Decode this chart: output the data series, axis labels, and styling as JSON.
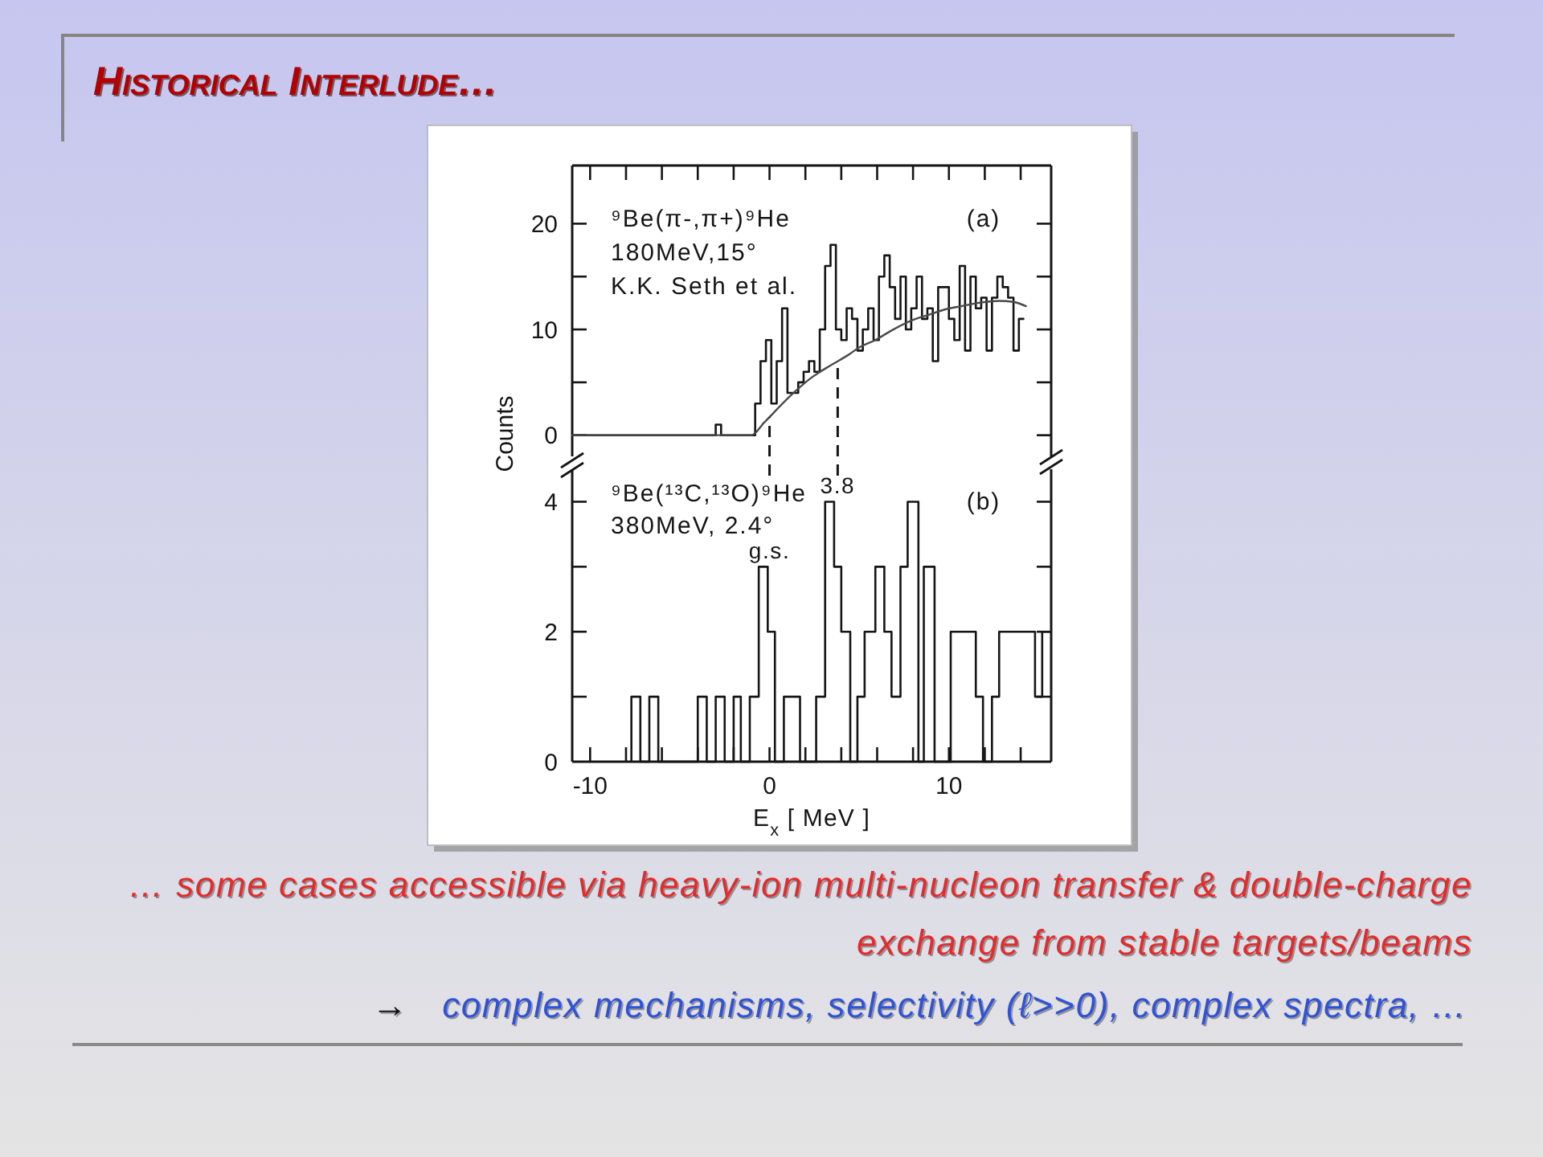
{
  "chart_data": [
    {
      "type": "histogram",
      "title": "Historical Interlude…",
      "ylabel": "Counts",
      "annotations": [
        "⁹Be(π-,π+)⁹He",
        "180MeV,15°",
        "K.K. Seth et al.",
        "(a)"
      ],
      "series": [
        {
          "color": "#151515",
          "bins": [
            -11,
            -3.0,
            -2.7,
            -0.8,
            -0.5,
            -0.2,
            0.1,
            0.4,
            0.7,
            1.0,
            1.3,
            1.6,
            1.9,
            2.2,
            2.5,
            2.8,
            3.1,
            3.4,
            3.7,
            4.0,
            4.3,
            4.6,
            4.9,
            5.2,
            5.5,
            5.8,
            6.1,
            6.4,
            6.7,
            7.0,
            7.3,
            7.6,
            7.9,
            8.2,
            8.5,
            8.8,
            9.1,
            9.4,
            9.7,
            10.0,
            10.3,
            10.6,
            10.9,
            11.2,
            11.5,
            11.8,
            12.1,
            12.4,
            12.7,
            13.0,
            13.3,
            13.6,
            13.9,
            14.2
          ],
          "values": [
            0,
            1,
            0,
            3,
            7,
            9,
            3,
            7,
            12,
            4,
            4,
            5,
            6,
            7,
            6,
            10,
            16,
            18,
            10,
            9,
            12,
            11,
            8,
            10,
            12,
            9,
            15,
            17,
            14,
            11,
            15,
            10,
            12,
            15,
            11,
            12,
            7,
            14,
            14,
            11,
            9,
            16,
            8,
            15,
            12,
            13,
            8,
            13,
            15,
            14,
            13,
            8,
            11
          ]
        },
        {
          "type": "line",
          "color": "#4a4a4a",
          "x": [
            -11,
            -1.0,
            -0.3,
            1.4,
            2.3,
            3.4,
            4.4,
            5.0,
            5.9,
            6.8,
            8.0,
            8.9,
            9.8,
            10.7,
            11.6,
            12.8,
            13.6,
            14.3
          ],
          "values": [
            0,
            0,
            1.2,
            4.1,
            5.4,
            6.6,
            7.6,
            8.3,
            9.0,
            9.9,
            10.9,
            11.4,
            11.9,
            12.2,
            12.5,
            12.7,
            12.6,
            12.2
          ]
        }
      ],
      "xlim": [
        -11,
        15.7
      ],
      "ylim": [
        -2,
        25.5
      ],
      "xticks": [
        -10,
        {
          "value": -8,
          "label": null
        },
        {
          "value": -6,
          "label": null
        },
        {
          "value": -4,
          "label": null
        },
        {
          "value": -2,
          "label": null
        },
        0,
        {
          "value": 2,
          "label": null
        },
        {
          "value": 4,
          "label": null
        },
        {
          "value": 6,
          "label": null
        },
        {
          "value": 8,
          "label": null
        },
        10,
        {
          "value": 12,
          "label": null
        },
        {
          "value": 14,
          "label": null
        }
      ],
      "yticks": [
        0,
        {
          "value": 5,
          "label": null
        },
        10,
        {
          "value": 15,
          "label": null
        },
        20
      ],
      "tick_labels": "y",
      "ref_lines": [
        {
          "axis": "x",
          "value": 0,
          "line_style": "dashed"
        },
        {
          "axis": "x",
          "value": 3.8,
          "line_style": "dashed"
        }
      ]
    },
    {
      "type": "histogram",
      "xlabel": "E$_{x}$ [ MeV ]",
      "annotations": [
        "⁹Be(¹³C,¹³O)⁹He",
        "380MeV, 2.4°",
        "(b)",
        {
          "text": "g.s.",
          "x": 0,
          "y": 3
        },
        {
          "text": "3.8",
          "x": 3.8,
          "y": 4
        }
      ],
      "bins": [
        -7.7,
        -7.2,
        -6.7,
        -6.2,
        -4.0,
        -3.5,
        -3.0,
        -2.5,
        -2.0,
        -1.6,
        -1.1,
        -0.6,
        -0.1,
        0.3,
        0.8,
        1.7,
        2.6,
        3.1,
        3.6,
        4.0,
        4.5,
        4.9,
        5.3,
        5.9,
        6.4,
        6.8,
        7.3,
        7.7,
        8.3,
        8.6,
        9.2,
        10.1,
        11.5,
        11.9,
        12.4,
        12.8,
        14.8,
        15.2,
        15.7
      ],
      "values": [
        1,
        0,
        1,
        0,
        1,
        0,
        1,
        0,
        1,
        0,
        1,
        3,
        2,
        0,
        1,
        0,
        1,
        4,
        3,
        2,
        0,
        1,
        2,
        3,
        2,
        1,
        3,
        4,
        0,
        3,
        0,
        2,
        1,
        0,
        1,
        2,
        1,
        2
      ],
      "color": "#151515",
      "xlim": [
        -11,
        15.7
      ],
      "ylim": [
        0,
        4.5
      ],
      "xticks": [
        -10,
        {
          "value": -8,
          "label": null
        },
        {
          "value": -6,
          "label": null
        },
        {
          "value": -4,
          "label": null
        },
        {
          "value": -2,
          "label": null
        },
        0,
        {
          "value": 2,
          "label": null
        },
        {
          "value": 4,
          "label": null
        },
        {
          "value": 6,
          "label": null
        },
        {
          "value": 8,
          "label": null
        },
        10,
        {
          "value": 12,
          "label": null
        },
        {
          "value": 14,
          "label": null
        }
      ],
      "yticks": [
        0,
        {
          "value": 1,
          "label": null
        },
        2,
        {
          "value": 3,
          "label": null
        },
        4
      ]
    },
    {
      "type": "other",
      "annotations": [
        "… some cases accessible via heavy-ion multi-nucleon transfer & double-charge",
        "exchange from stable targets/beams",
        "→ complex mechanisms, selectivity (ℓ>>0), complex spectra, …"
      ]
    }
  ]
}
